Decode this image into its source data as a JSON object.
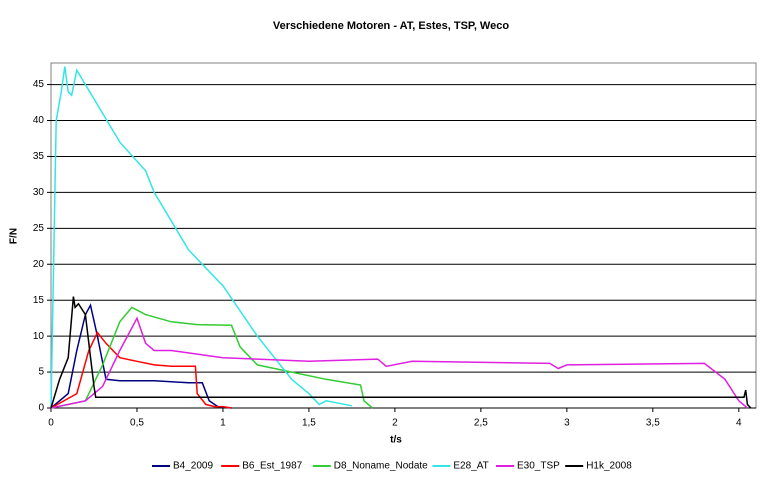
{
  "chart_data": {
    "type": "line",
    "title": "Verschiedene Motoren - AT, Estes, TSP, Weco",
    "x_label": "t/s",
    "y_label": "F/N",
    "xlim": [
      0,
      4.1
    ],
    "ylim": [
      0,
      48
    ],
    "xticks": [
      0,
      {
        "value": 0.5,
        "label": "0,5"
      },
      1,
      {
        "value": 1.5,
        "label": "1,5"
      },
      2,
      {
        "value": 2.5,
        "label": "2,5"
      },
      3,
      {
        "value": 3.5,
        "label": "3,5"
      },
      4
    ],
    "yticks": [
      0,
      5,
      10,
      15,
      20,
      25,
      30,
      35,
      40,
      45
    ],
    "grid": true,
    "legend": "bottom",
    "series": [
      {
        "name": "B4_2009",
        "color": "#000080",
        "x": [
          0,
          0.1,
          0.15,
          0.2,
          0.23,
          0.27,
          0.32,
          0.4,
          0.6,
          0.8,
          0.88,
          0.92,
          0.97,
          1.05
        ],
        "values": [
          0,
          2,
          8,
          13,
          14.3,
          10,
          4,
          3.8,
          3.8,
          3.5,
          3.5,
          1,
          0.2,
          0
        ]
      },
      {
        "name": "B6_Est_1987",
        "color": "#ff0000",
        "x": [
          0,
          0.15,
          0.22,
          0.27,
          0.32,
          0.4,
          0.5,
          0.6,
          0.7,
          0.84,
          0.85,
          0.9,
          0.95,
          1.0,
          1.05
        ],
        "values": [
          0,
          2,
          8,
          10.5,
          9,
          7,
          6.5,
          6,
          5.8,
          5.8,
          2,
          0.5,
          0.2,
          0.2,
          0
        ]
      },
      {
        "name": "D8_Noname_Nodate",
        "color": "#33cc33",
        "x": [
          0,
          0.2,
          0.3,
          0.4,
          0.47,
          0.55,
          0.7,
          0.85,
          1.05,
          1.1,
          1.2,
          1.4,
          1.6,
          1.8,
          1.82,
          1.87
        ],
        "values": [
          0,
          1,
          6,
          12,
          14,
          13,
          12,
          11.6,
          11.5,
          8.5,
          6,
          5,
          4,
          3.2,
          1,
          0
        ]
      },
      {
        "name": "E28_AT",
        "color": "#33e6e6",
        "x": [
          0,
          0.03,
          0.06,
          0.08,
          0.1,
          0.12,
          0.15,
          0.2,
          0.3,
          0.4,
          0.55,
          0.6,
          0.8,
          1.0,
          1.2,
          1.4,
          1.5,
          1.56,
          1.6,
          1.75
        ],
        "values": [
          0,
          40,
          44,
          47.5,
          44,
          43.5,
          47,
          45,
          41,
          37,
          33,
          30,
          22,
          17,
          10,
          4,
          2,
          0.5,
          1,
          0.3
        ]
      },
      {
        "name": "E30_TSP",
        "color": "#e020e0",
        "x": [
          0,
          0.2,
          0.3,
          0.4,
          0.5,
          0.55,
          0.6,
          0.7,
          1.0,
          1.5,
          1.9,
          1.95,
          2.1,
          2.9,
          2.95,
          3.0,
          3.8,
          3.92,
          4.0,
          4.05
        ],
        "values": [
          0,
          1,
          3,
          8,
          12.5,
          9,
          8,
          8,
          7,
          6.5,
          6.8,
          5.8,
          6.5,
          6.2,
          5.5,
          6,
          6.2,
          4,
          1,
          0
        ]
      },
      {
        "name": "H1k_2008",
        "color": "#000000",
        "x": [
          0,
          0.05,
          0.1,
          0.13,
          0.14,
          0.16,
          0.2,
          0.25,
          0.26,
          0.3,
          4.03,
          4.04,
          4.05,
          4.07
        ],
        "values": [
          0,
          4,
          7,
          15.5,
          14,
          14.5,
          13,
          3,
          1.5,
          1.5,
          1.5,
          2.5,
          0.5,
          0
        ]
      }
    ]
  }
}
